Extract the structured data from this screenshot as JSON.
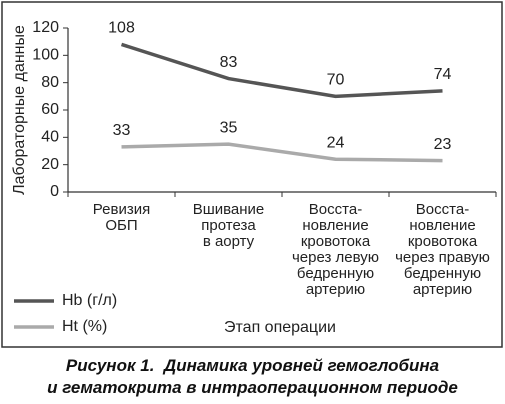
{
  "chart_data": {
    "type": "line",
    "y_label": "Лабораторные данные",
    "x_label": "Этап операции",
    "categories": [
      "Ревизия\nОБП",
      "Вшивание\nпротеза\nв аорту",
      "Восста-\nновление\nкровотока\nчерез левую\nбедренную\nартерию",
      "Восста-\nновление\nкровотока\nчерез правую\nбедренную\nартерию"
    ],
    "series": [
      {
        "name": "Hb (г/л)",
        "color": "#555555",
        "values": [
          108,
          83,
          70,
          74
        ]
      },
      {
        "name": "Ht (%)",
        "color": "#aaaaaa",
        "values": [
          33,
          35,
          24,
          23
        ]
      }
    ],
    "ylim": [
      0,
      120
    ],
    "yticks": [
      0,
      20,
      40,
      60,
      80,
      100,
      120
    ],
    "legend": "lower-left",
    "caption": [
      "Рисунок 1.  Динамика уровней гемоглобина",
      "и гематокрита в интраоперационном периоде"
    ]
  }
}
